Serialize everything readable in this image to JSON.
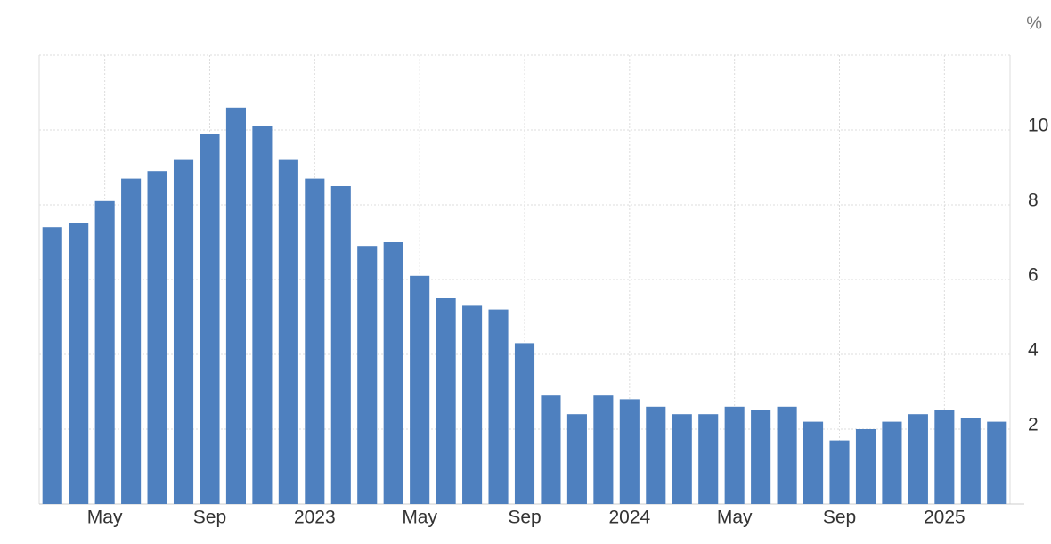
{
  "chart_data": {
    "type": "bar",
    "unit": "%",
    "categories": [
      null,
      null,
      "May",
      null,
      null,
      null,
      "Sep",
      null,
      null,
      null,
      "2023",
      null,
      null,
      null,
      "May",
      null,
      null,
      null,
      "Sep",
      null,
      null,
      null,
      "2024",
      null,
      null,
      null,
      "May",
      null,
      null,
      null,
      "Sep",
      null,
      null,
      null,
      "2025",
      null,
      null
    ],
    "values": [
      7.4,
      7.5,
      8.1,
      8.7,
      8.9,
      9.2,
      9.9,
      10.6,
      10.1,
      9.2,
      8.7,
      8.5,
      6.9,
      7.0,
      6.1,
      5.5,
      5.3,
      5.2,
      4.3,
      2.9,
      2.4,
      2.9,
      2.8,
      2.6,
      2.4,
      2.4,
      2.6,
      2.5,
      2.6,
      2.2,
      1.7,
      2.0,
      2.2,
      2.4,
      2.5,
      2.3,
      2.2
    ],
    "color": "#4e80bf",
    "ylim": [
      0,
      12
    ],
    "yticks": [
      2,
      4,
      6,
      8,
      10
    ],
    "grid": true
  }
}
